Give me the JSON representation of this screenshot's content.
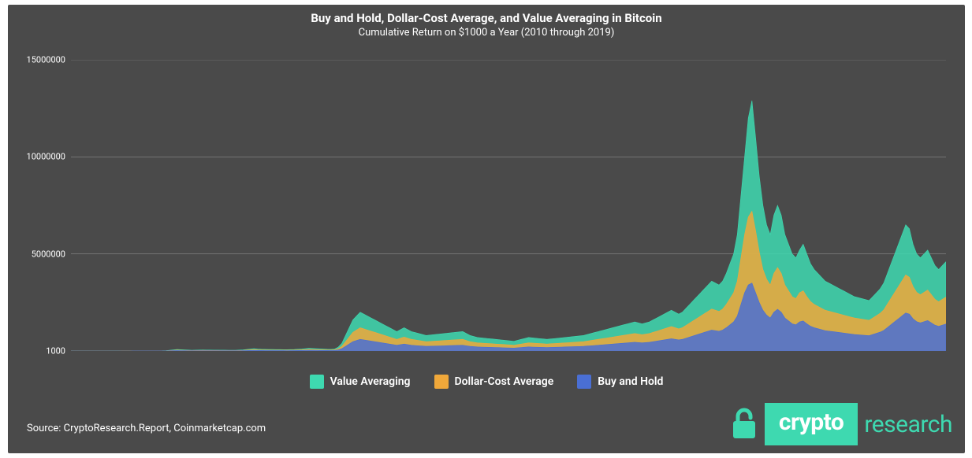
{
  "chart": {
    "type": "area",
    "title": "Buy and Hold, Dollar-Cost Average, and Value Averaging in Bitcoin",
    "subtitle": "Cumulative Return on $1000 a Year (2010 through 2019)",
    "background_color": "#4a4a4a",
    "grid_color": "#8c8c8c",
    "text_color": "#ffffff",
    "title_fontsize": 15,
    "subtitle_fontsize": 13,
    "axis_label_fontsize": 11,
    "legend_fontsize": 14,
    "y_axis": {
      "ticks": [
        1000,
        5000000,
        10000000,
        15000000
      ],
      "labels": [
        "1000",
        "5000000",
        "10000000",
        "15000000"
      ],
      "min": 1000,
      "max": 15000000,
      "scale": "linear"
    },
    "x_axis": {
      "n_points": 240
    },
    "series": [
      {
        "name": "Value Averaging",
        "color": "#3ed9b0",
        "fill_opacity": 0.85,
        "values": [
          1000,
          1000,
          1000,
          1000,
          1000,
          1000,
          1000,
          1000,
          1000,
          1000,
          1000,
          2000,
          2000,
          2000,
          3000,
          3000,
          3000,
          4000,
          4000,
          5000,
          6000,
          7000,
          8000,
          9000,
          10000,
          12000,
          20000,
          40000,
          60000,
          80000,
          70000,
          60000,
          50000,
          40000,
          45000,
          50000,
          55000,
          50000,
          48000,
          46000,
          45000,
          44000,
          43000,
          42000,
          41000,
          40000,
          50000,
          60000,
          80000,
          100000,
          120000,
          100000,
          90000,
          85000,
          80000,
          78000,
          76000,
          74000,
          72000,
          70000,
          75000,
          80000,
          90000,
          100000,
          120000,
          140000,
          130000,
          120000,
          110000,
          100000,
          90000,
          85000,
          100000,
          200000,
          400000,
          800000,
          1200000,
          1600000,
          1800000,
          2000000,
          1900000,
          1800000,
          1700000,
          1600000,
          1500000,
          1400000,
          1300000,
          1200000,
          1100000,
          1000000,
          1100000,
          1200000,
          1100000,
          1000000,
          950000,
          900000,
          850000,
          800000,
          820000,
          840000,
          860000,
          880000,
          900000,
          920000,
          940000,
          960000,
          980000,
          1000000,
          900000,
          800000,
          750000,
          700000,
          680000,
          660000,
          640000,
          620000,
          600000,
          580000,
          560000,
          540000,
          520000,
          500000,
          550000,
          600000,
          650000,
          700000,
          680000,
          660000,
          640000,
          620000,
          600000,
          620000,
          640000,
          660000,
          680000,
          700000,
          720000,
          740000,
          760000,
          780000,
          800000,
          850000,
          900000,
          950000,
          1000000,
          1050000,
          1100000,
          1150000,
          1200000,
          1250000,
          1300000,
          1350000,
          1400000,
          1450000,
          1500000,
          1450000,
          1400000,
          1450000,
          1500000,
          1600000,
          1700000,
          1800000,
          1900000,
          2000000,
          2100000,
          2000000,
          1900000,
          2000000,
          2200000,
          2400000,
          2600000,
          2800000,
          3000000,
          3200000,
          3400000,
          3600000,
          3500000,
          3400000,
          3600000,
          4000000,
          4500000,
          5000000,
          6000000,
          8000000,
          10000000,
          12000000,
          12900000,
          11000000,
          9000000,
          7500000,
          6500000,
          6000000,
          7000000,
          7500000,
          7000000,
          6000000,
          5500000,
          5000000,
          4800000,
          5200000,
          5500000,
          5000000,
          4500000,
          4200000,
          4000000,
          3800000,
          3600000,
          3500000,
          3400000,
          3300000,
          3200000,
          3100000,
          3000000,
          2900000,
          2800000,
          2750000,
          2700000,
          2650000,
          2600000,
          2800000,
          3000000,
          3200000,
          3500000,
          4000000,
          4500000,
          5000000,
          5500000,
          6000000,
          6500000,
          6300000,
          5500000,
          5000000,
          4800000,
          5000000,
          5200000,
          4800000,
          4400000,
          4200000,
          4400000,
          4600000
        ]
      },
      {
        "name": "Dollar-Cost Average",
        "color": "#f0a83a",
        "fill_opacity": 0.85,
        "values": [
          1000,
          1000,
          1000,
          1000,
          1000,
          1000,
          1000,
          1000,
          1000,
          1000,
          1000,
          1500,
          1500,
          1500,
          2000,
          2000,
          2000,
          2500,
          2500,
          3000,
          3500,
          4000,
          4500,
          5000,
          5500,
          6500,
          12000,
          24000,
          36000,
          48000,
          42000,
          36000,
          30000,
          24000,
          27000,
          30000,
          33000,
          30000,
          29000,
          28000,
          27000,
          26500,
          26000,
          25500,
          25000,
          24500,
          30000,
          36000,
          48000,
          60000,
          72000,
          60000,
          54000,
          51000,
          48000,
          47000,
          46000,
          45000,
          44000,
          43000,
          45000,
          48000,
          54000,
          60000,
          72000,
          84000,
          78000,
          72000,
          66000,
          60000,
          54000,
          51000,
          60000,
          120000,
          240000,
          480000,
          720000,
          960000,
          1080000,
          1200000,
          1140000,
          1080000,
          1020000,
          960000,
          900000,
          840000,
          780000,
          720000,
          660000,
          600000,
          660000,
          720000,
          660000,
          600000,
          570000,
          540000,
          510000,
          480000,
          492000,
          504000,
          516000,
          528000,
          540000,
          552000,
          564000,
          576000,
          588000,
          600000,
          540000,
          480000,
          450000,
          420000,
          408000,
          396000,
          384000,
          372000,
          360000,
          348000,
          336000,
          324000,
          312000,
          300000,
          330000,
          360000,
          390000,
          420000,
          408000,
          396000,
          384000,
          372000,
          360000,
          372000,
          384000,
          396000,
          408000,
          420000,
          432000,
          444000,
          456000,
          468000,
          480000,
          510000,
          540000,
          570000,
          600000,
          630000,
          660000,
          690000,
          720000,
          750000,
          780000,
          810000,
          840000,
          870000,
          900000,
          870000,
          840000,
          870000,
          900000,
          960000,
          1020000,
          1080000,
          1140000,
          1200000,
          1260000,
          1200000,
          1140000,
          1200000,
          1320000,
          1440000,
          1560000,
          1680000,
          1800000,
          1920000,
          2040000,
          2160000,
          2100000,
          2040000,
          2160000,
          2400000,
          2700000,
          3000000,
          3600000,
          4800000,
          6000000,
          6900000,
          7200000,
          6200000,
          5100000,
          4200000,
          3700000,
          3400000,
          4000000,
          4300000,
          4000000,
          3400000,
          3100000,
          2800000,
          2700000,
          3000000,
          3100000,
          2800000,
          2550000,
          2400000,
          2300000,
          2200000,
          2100000,
          2050000,
          2000000,
          1950000,
          1900000,
          1850000,
          1800000,
          1750000,
          1700000,
          1670000,
          1640000,
          1610000,
          1580000,
          1700000,
          1820000,
          1940000,
          2120000,
          2420000,
          2720000,
          3020000,
          3320000,
          3620000,
          3920000,
          3800000,
          3320000,
          3020000,
          2900000,
          3020000,
          3140000,
          2900000,
          2660000,
          2540000,
          2660000,
          2780000
        ]
      },
      {
        "name": "Buy and Hold",
        "color": "#4a6fd4",
        "fill_opacity": 0.85,
        "values": [
          1000,
          1000,
          1000,
          1000,
          1000,
          1000,
          1000,
          1000,
          1000,
          1000,
          1000,
          1200,
          1200,
          1200,
          1400,
          1400,
          1400,
          1600,
          1600,
          1800,
          2000,
          2200,
          2400,
          2600,
          2800,
          3200,
          6000,
          12000,
          18000,
          24000,
          21000,
          18000,
          15000,
          12000,
          13500,
          15000,
          16500,
          15000,
          14500,
          14000,
          13500,
          13250,
          13000,
          12750,
          12500,
          12250,
          15000,
          18000,
          24000,
          30000,
          36000,
          30000,
          27000,
          25500,
          24000,
          23500,
          23000,
          22500,
          22000,
          21500,
          22500,
          24000,
          27000,
          30000,
          36000,
          42000,
          39000,
          36000,
          33000,
          30000,
          27000,
          25500,
          30000,
          60000,
          120000,
          240000,
          360000,
          480000,
          540000,
          600000,
          570000,
          540000,
          510000,
          480000,
          450000,
          420000,
          390000,
          360000,
          330000,
          300000,
          330000,
          360000,
          330000,
          300000,
          285000,
          270000,
          255000,
          240000,
          246000,
          252000,
          258000,
          264000,
          270000,
          276000,
          282000,
          288000,
          294000,
          300000,
          270000,
          240000,
          225000,
          210000,
          204000,
          198000,
          192000,
          186000,
          180000,
          174000,
          168000,
          162000,
          156000,
          150000,
          165000,
          180000,
          195000,
          210000,
          204000,
          198000,
          192000,
          186000,
          180000,
          186000,
          192000,
          198000,
          204000,
          210000,
          216000,
          222000,
          228000,
          234000,
          240000,
          255000,
          270000,
          285000,
          300000,
          315000,
          330000,
          345000,
          360000,
          375000,
          390000,
          405000,
          420000,
          435000,
          450000,
          435000,
          420000,
          435000,
          450000,
          480000,
          510000,
          540000,
          570000,
          600000,
          630000,
          600000,
          570000,
          600000,
          660000,
          720000,
          780000,
          840000,
          900000,
          960000,
          1020000,
          1080000,
          1050000,
          1020000,
          1080000,
          1200000,
          1350000,
          1500000,
          1800000,
          2400000,
          3000000,
          3400000,
          3500000,
          3000000,
          2500000,
          2100000,
          1850000,
          1700000,
          2000000,
          2150000,
          2000000,
          1700000,
          1550000,
          1400000,
          1350000,
          1500000,
          1550000,
          1400000,
          1275000,
          1200000,
          1150000,
          1100000,
          1050000,
          1025000,
          1000000,
          975000,
          950000,
          925000,
          900000,
          875000,
          850000,
          835000,
          820000,
          805000,
          790000,
          850000,
          910000,
          970000,
          1060000,
          1210000,
          1360000,
          1510000,
          1660000,
          1810000,
          1960000,
          1900000,
          1660000,
          1510000,
          1450000,
          1510000,
          1570000,
          1450000,
          1330000,
          1270000,
          1330000,
          1390000
        ]
      }
    ],
    "legend": {
      "position": "bottom",
      "items": [
        "Value Averaging",
        "Dollar-Cost Average",
        "Buy and Hold"
      ]
    }
  },
  "footer": {
    "source": "Source: CryptoResearch.Report, Coinmarketcap.com",
    "brand_primary": "crypto",
    "brand_secondary": "research",
    "brand_color": "#3ed9b0"
  }
}
